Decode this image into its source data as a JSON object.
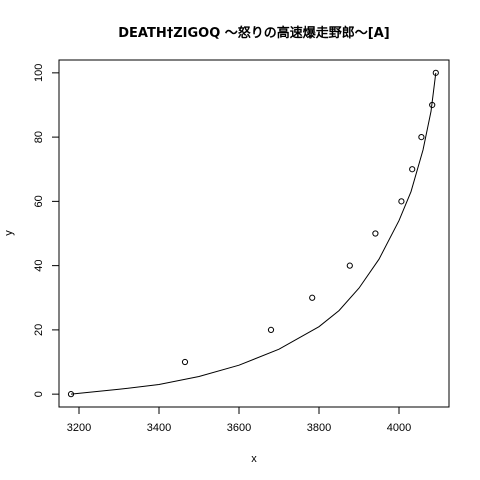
{
  "chart_data": {
    "type": "scatter",
    "title": "DEATH†ZIGOQ ～怒りの高速爆走野郎～[A]",
    "xlabel": "x",
    "ylabel": "y",
    "xlim": [
      3150,
      4125
    ],
    "ylim": [
      -4,
      104
    ],
    "x_ticks": [
      3200,
      3400,
      3600,
      3800,
      4000
    ],
    "y_ticks": [
      0,
      20,
      40,
      60,
      80,
      100
    ],
    "grid": false,
    "legend": "none",
    "point_style": "open-circle",
    "points": [
      {
        "x": 3180,
        "y": 0
      },
      {
        "x": 3465,
        "y": 10
      },
      {
        "x": 3680,
        "y": 20
      },
      {
        "x": 3783,
        "y": 30
      },
      {
        "x": 3877,
        "y": 40
      },
      {
        "x": 3941,
        "y": 50
      },
      {
        "x": 4006,
        "y": 60
      },
      {
        "x": 4033,
        "y": 70
      },
      {
        "x": 4056,
        "y": 80
      },
      {
        "x": 4083,
        "y": 90
      },
      {
        "x": 4092,
        "y": 100
      }
    ],
    "fit_curve": [
      {
        "x": 3180,
        "y": 0
      },
      {
        "x": 3300,
        "y": 1.5
      },
      {
        "x": 3400,
        "y": 3
      },
      {
        "x": 3500,
        "y": 5.5
      },
      {
        "x": 3600,
        "y": 9
      },
      {
        "x": 3700,
        "y": 14
      },
      {
        "x": 3800,
        "y": 21
      },
      {
        "x": 3850,
        "y": 26
      },
      {
        "x": 3900,
        "y": 33
      },
      {
        "x": 3950,
        "y": 42
      },
      {
        "x": 4000,
        "y": 54
      },
      {
        "x": 4030,
        "y": 63
      },
      {
        "x": 4060,
        "y": 76
      },
      {
        "x": 4080,
        "y": 88
      },
      {
        "x": 4092,
        "y": 100
      }
    ],
    "colors": {
      "points": "#000000",
      "line": "#000000",
      "background": "#ffffff"
    }
  }
}
